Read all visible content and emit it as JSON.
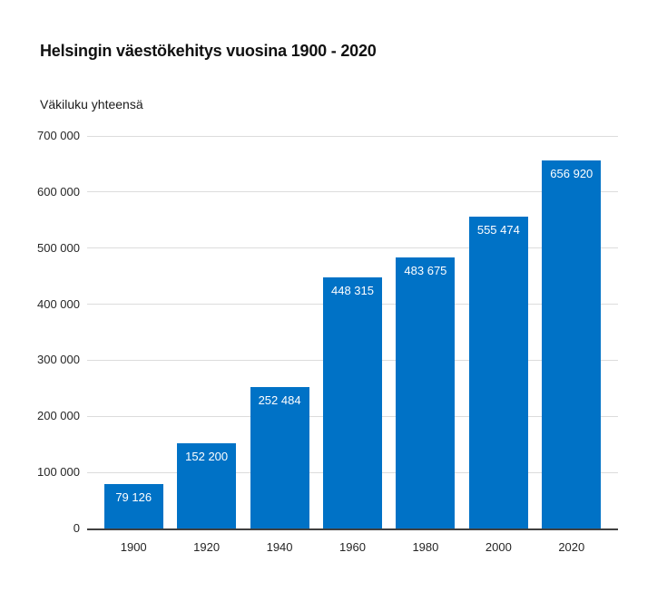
{
  "header": {
    "title": "Helsingin väestökehitys vuosina 1900 - 2020",
    "subtitle": "Väkiluku yhteensä"
  },
  "chart_data": {
    "type": "bar",
    "title": "Helsingin väestökehitys vuosina 1900 - 2020",
    "ylabel": "Väkiluku yhteensä",
    "xlabel": "",
    "categories": [
      "1900",
      "1920",
      "1940",
      "1960",
      "1980",
      "2000",
      "2020"
    ],
    "values": [
      79126,
      152200,
      252484,
      448315,
      483675,
      555474,
      656920
    ],
    "value_labels": [
      "79 126",
      "152 200",
      "252 484",
      "448 315",
      "483 675",
      "555 474",
      "656 920"
    ],
    "ylim": [
      0,
      700000
    ],
    "y_ticks": [
      0,
      100000,
      200000,
      300000,
      400000,
      500000,
      600000,
      700000
    ],
    "y_tick_labels": [
      "0",
      "100 000",
      "200 000",
      "300 000",
      "400 000",
      "500 000",
      "600 000",
      "700 000"
    ],
    "grid": true,
    "legend": "none",
    "bar_color": "#0072C6",
    "bar_label_color": "#ffffff",
    "gridline_color": "#dcdcdc",
    "axis_line_color": "#404040",
    "text_color": "#262626"
  }
}
